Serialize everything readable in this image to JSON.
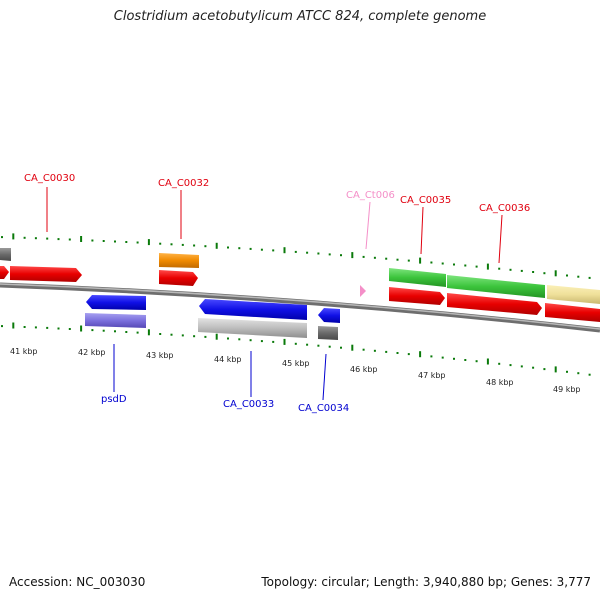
{
  "title": "Clostridium acetobutylicum ATCC 824, complete genome",
  "footer": {
    "accession": "Accession: NC_003030",
    "summary": "Topology: circular; Length: 3,940,880 bp; Genes: 3,777"
  },
  "colors": {
    "label_red": "#e0000f",
    "label_blue": "#0000d0",
    "label_pink": "#f48fc8",
    "tick": "#0a7a0a",
    "backbone": "#8a8a8a"
  },
  "kbp_labels": [
    "41 kbp",
    "42 kbp",
    "43 kbp",
    "44 kbp",
    "45 kbp",
    "46 kbp",
    "47 kbp",
    "48 kbp",
    "49 kbp"
  ],
  "gene_labels": {
    "ca_c0030": "CA_C0030",
    "ca_c0032": "CA_C0032",
    "ca_ct006": "CA_Ct006",
    "ca_c0035": "CA_C0035",
    "ca_c0036": "CA_C0036",
    "psdd": "psdD",
    "ca_c0033": "CA_C0033",
    "ca_c0034": "CA_C0034"
  }
}
